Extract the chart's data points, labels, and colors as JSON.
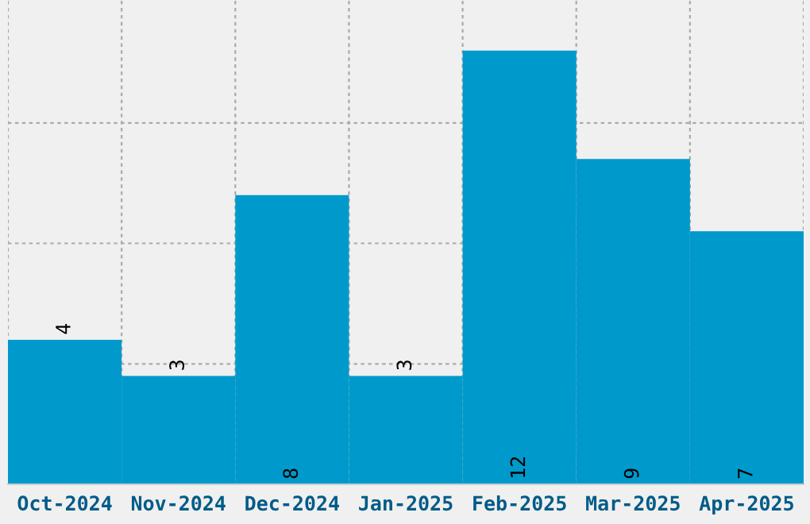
{
  "chart_data": {
    "type": "bar",
    "categories": [
      "Oct-2024",
      "Nov-2024",
      "Dec-2024",
      "Jan-2025",
      "Feb-2025",
      "Mar-2025",
      "Apr-2025"
    ],
    "values": [
      4,
      3,
      8,
      3,
      12,
      9,
      7
    ],
    "color": "#0099cc",
    "ylim": [
      0,
      13.4
    ],
    "yticks": [
      {
        "value": 3.333,
        "label": null
      },
      {
        "value": 6.667,
        "label": null
      },
      {
        "value": 10,
        "label": null
      }
    ],
    "tick_labels": "x",
    "grid": true,
    "data_labels": true
  }
}
